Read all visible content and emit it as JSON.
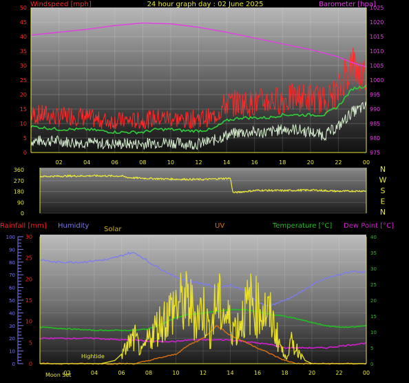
{
  "colors": {
    "wind": "#ff2a2a",
    "gust": "#ff0000",
    "avg_wind": "#2fd03a",
    "min_wind": "#d8f0d0",
    "barometer": "#e43ce4",
    "direction": "#f2ee3a",
    "rain_axis": "#ff2020",
    "humidity": "#7c7cf0",
    "solar": "#e8e02a",
    "uv": "#e07010",
    "temperature": "#20c020",
    "dewpoint": "#d020d0",
    "title": "#e8e83a"
  },
  "chart_data": [
    {
      "type": "line",
      "title": "24 hour graph day : 02 June 2025",
      "y_left_label": "Windspeed [mph]",
      "y_right_label": "Barometer [hpa]",
      "x_ticks": [
        "02",
        "04",
        "06",
        "08",
        "10",
        "12",
        "14",
        "16",
        "18",
        "20",
        "22",
        "00"
      ],
      "y_left_ticks": [
        0,
        5,
        10,
        15,
        20,
        25,
        30,
        35,
        40,
        45,
        50
      ],
      "y_right_ticks": [
        975,
        980,
        985,
        990,
        995,
        1000,
        1005,
        1010,
        1015,
        1020,
        1025
      ],
      "y_left_range": [
        0,
        50
      ],
      "y_right_range": [
        975,
        1025
      ],
      "x_range_hours": [
        0,
        24
      ],
      "barometer_x": [
        0,
        2,
        4,
        6,
        8,
        10,
        12,
        14,
        16,
        18,
        20,
        22,
        23,
        24
      ],
      "barometer_y": [
        1015.5,
        1016.5,
        1017.5,
        1018.8,
        1019.7,
        1019.4,
        1018.2,
        1016.5,
        1014.5,
        1012.5,
        1010.5,
        1008,
        1006,
        1004.5
      ],
      "wind_x": [
        0,
        1,
        2,
        3,
        4,
        5,
        6,
        7,
        8,
        9,
        10,
        11,
        12,
        13,
        14,
        15,
        16,
        17,
        18,
        19,
        20,
        21,
        22,
        22.5,
        23,
        23.5,
        24
      ],
      "wind_y": [
        13,
        13,
        12,
        13,
        12,
        11,
        11,
        11,
        11,
        12,
        12,
        11,
        12,
        12,
        17,
        17,
        17,
        18,
        18,
        19,
        19,
        18,
        21,
        28,
        30,
        27,
        27
      ],
      "avg_wind_x": [
        0,
        1,
        2,
        3,
        4,
        5,
        6,
        7,
        8,
        9,
        10,
        11,
        12,
        13,
        14,
        15,
        16,
        17,
        18,
        19,
        20,
        21,
        22,
        23,
        24
      ],
      "avg_wind_y": [
        9,
        8.5,
        8,
        8,
        8,
        7.5,
        7,
        7,
        7,
        8,
        8,
        7.5,
        7.5,
        8,
        11,
        12,
        12,
        12,
        13,
        13,
        13,
        13,
        16,
        22,
        23
      ],
      "min_wind_x": [
        0,
        1,
        2,
        3,
        4,
        5,
        6,
        7,
        8,
        9,
        10,
        11,
        12,
        13,
        14,
        15,
        16,
        17,
        18,
        19,
        20,
        21,
        22,
        23,
        24
      ],
      "min_wind_y": [
        4,
        4,
        4,
        3.5,
        3.5,
        3,
        3,
        3,
        3,
        3.5,
        3.5,
        3,
        3,
        4,
        6,
        7,
        7,
        7,
        8,
        8,
        7,
        6,
        9,
        14,
        16
      ]
    },
    {
      "type": "line",
      "title": "",
      "y_ticks": [
        360,
        270,
        180,
        90,
        0
      ],
      "y_range": [
        0,
        360
      ],
      "right_labels": [
        "N",
        "W",
        "S",
        "E",
        "N"
      ],
      "x_range_hours": [
        0,
        24
      ],
      "direction_x": [
        0,
        2,
        4,
        6,
        6.5,
        8,
        10,
        12,
        13,
        14,
        14.2,
        16,
        18,
        20,
        22,
        24
      ],
      "direction_y": [
        305,
        308,
        310,
        308,
        295,
        288,
        282,
        280,
        285,
        290,
        170,
        190,
        188,
        192,
        182,
        185
      ]
    },
    {
      "type": "line",
      "title": "",
      "labels": {
        "rainfall": "Rainfall [mm]",
        "humidity": "Humidity",
        "solar": "Solar",
        "uv": "UV",
        "temperature": "Temperature [°C]",
        "dewpoint": "Dew Point [°C]"
      },
      "humidity_ticks": [
        0,
        10,
        20,
        30,
        40,
        50,
        60,
        70,
        80,
        90,
        100
      ],
      "rain_ticks": [
        0,
        5,
        10,
        15,
        20,
        25,
        30
      ],
      "temp_ticks": [
        0,
        5,
        10,
        15,
        20,
        25,
        30,
        35,
        40
      ],
      "x_ticks": [
        "02",
        "04",
        "06",
        "08",
        "10",
        "12",
        "14",
        "16",
        "18",
        "20",
        "22",
        "00"
      ],
      "x_range_hours": [
        0,
        24
      ],
      "annotations": [
        "Moon Set",
        "Hightide"
      ],
      "humidity_x": [
        0,
        1,
        2,
        3,
        4,
        5,
        6,
        6.5,
        7,
        7.5,
        8,
        9,
        10,
        11,
        12,
        13,
        14,
        15,
        16,
        16.5,
        17,
        18,
        19,
        20,
        21,
        22,
        23,
        24
      ],
      "humidity_y": [
        82,
        80,
        80,
        80,
        81,
        82,
        85,
        87,
        87,
        84,
        80,
        74,
        68,
        65,
        63,
        60,
        62,
        58,
        48,
        46,
        46,
        50,
        55,
        62,
        67,
        70,
        73,
        72
      ],
      "temp_x": [
        0,
        2,
        4,
        6,
        7,
        8,
        9,
        10,
        11,
        12,
        13,
        14,
        15,
        16,
        17,
        18,
        19,
        20,
        21,
        22,
        23,
        24
      ],
      "temp_y": [
        11.5,
        11,
        10.5,
        10.5,
        10.5,
        11,
        12.5,
        14.5,
        15.5,
        16,
        16.5,
        17,
        17,
        16.5,
        15.5,
        15,
        14,
        13,
        12,
        11.5,
        11.5,
        12
      ],
      "dewpoint_x": [
        0,
        2,
        4,
        6,
        7,
        8,
        9,
        10,
        11,
        12,
        13,
        14,
        15,
        16,
        17,
        18,
        19,
        20,
        21,
        22,
        23,
        24
      ],
      "dewpoint_y": [
        8,
        8,
        8,
        7.5,
        7.5,
        7,
        7,
        7,
        7.5,
        7.5,
        7.5,
        7.5,
        7,
        6.5,
        6,
        5,
        5,
        5,
        5,
        5.5,
        6,
        6.5
      ],
      "solar_x": [
        0,
        4.5,
        5.5,
        6,
        6.5,
        7,
        7.5,
        8,
        8.5,
        9,
        10,
        11,
        11.5,
        12,
        12.5,
        13,
        13.5,
        14,
        14.5,
        15,
        15.5,
        16,
        16.5,
        17,
        17.5,
        18,
        18.5,
        19,
        19.5,
        20,
        24
      ],
      "solar_y": [
        0,
        0,
        1,
        3,
        8,
        10,
        4,
        10,
        14,
        17,
        23,
        24,
        18,
        22,
        12,
        25,
        20,
        16,
        14,
        20,
        24,
        22,
        21,
        18,
        10,
        2,
        8,
        5,
        1,
        0,
        0
      ],
      "uv_x": [
        0,
        7,
        8,
        9,
        10,
        11,
        12,
        13,
        14,
        15,
        16,
        17,
        18,
        19,
        20,
        24
      ],
      "uv_y": [
        0,
        0,
        1,
        2,
        3,
        6,
        8,
        12,
        9,
        7,
        5,
        3,
        1,
        0,
        0,
        0
      ]
    }
  ]
}
